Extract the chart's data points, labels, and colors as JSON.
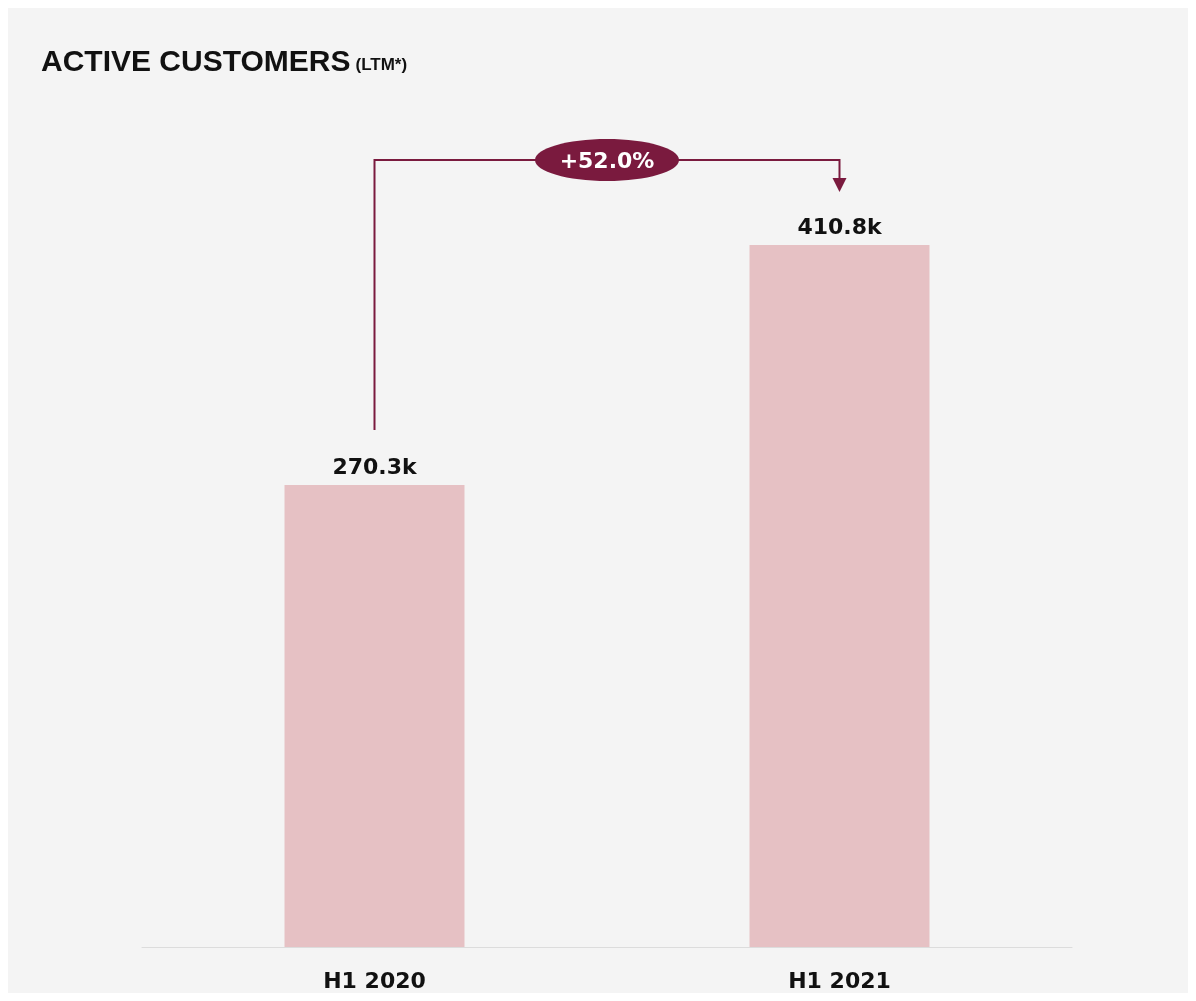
{
  "chart_data": {
    "type": "bar",
    "title": "ACTIVE CUSTOMERS",
    "subtitle": "(LTM*)",
    "categories": [
      "H1 2020",
      "H1 2021"
    ],
    "values": [
      270.3,
      410.8
    ],
    "value_labels": [
      "270.3k",
      "410.8k"
    ],
    "color": "#e6c1c4",
    "tick_labels": "x",
    "annotations": [
      "+52.0%"
    ]
  }
}
